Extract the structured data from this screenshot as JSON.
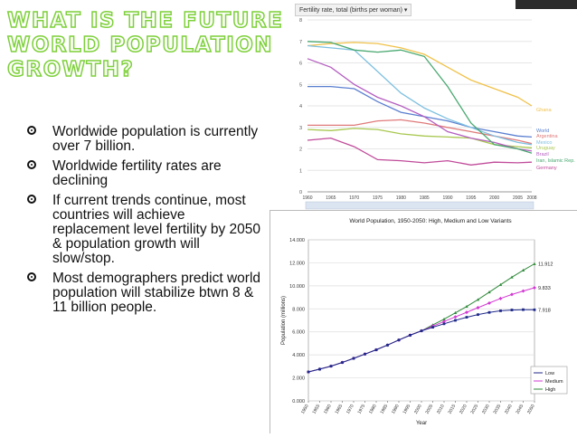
{
  "title": {
    "lines": [
      "WHAT IS THE FUTURE OF",
      "WORLD POPULATION",
      "GROWTH?"
    ]
  },
  "bullets": [
    "Worldwide population is currently over 7 billion.",
    "Worldwide fertility rates are declining",
    "If current trends continue, most countries will achieve replacement level fertility by 2050 & population growth will slow/stop.",
    "Most demographers predict world population will stabilize btwn 8 & 11 billion people."
  ],
  "chart_data": [
    {
      "type": "line",
      "title": "Fertility rate, total (births per woman)",
      "x": [
        1960,
        1965,
        1970,
        1975,
        1980,
        1985,
        1990,
        1995,
        2000,
        2005,
        2008
      ],
      "x_ticks": [
        1960,
        1965,
        1970,
        1975,
        1980,
        1985,
        1990,
        1995,
        2000,
        2005,
        2008
      ],
      "ylim": [
        0,
        8
      ],
      "y_ticks": [
        0,
        1,
        2,
        3,
        4,
        5,
        6,
        7,
        8
      ],
      "series": [
        {
          "name": "Ghana",
          "color": "#f0c24a",
          "values": [
            6.8,
            6.9,
            6.95,
            6.9,
            6.7,
            6.4,
            5.8,
            5.2,
            4.8,
            4.4,
            4.0
          ]
        },
        {
          "name": "World",
          "color": "#5a7fd0",
          "values": [
            4.9,
            4.9,
            4.8,
            4.2,
            3.7,
            3.5,
            3.3,
            3.0,
            2.8,
            2.6,
            2.55
          ]
        },
        {
          "name": "Argentina",
          "color": "#e07a7a",
          "values": [
            3.1,
            3.1,
            3.1,
            3.3,
            3.35,
            3.2,
            3.0,
            2.8,
            2.6,
            2.4,
            2.25
          ]
        },
        {
          "name": "Mexico",
          "color": "#7ec0e0",
          "values": [
            6.8,
            6.7,
            6.6,
            5.6,
            4.6,
            3.9,
            3.4,
            3.0,
            2.6,
            2.3,
            2.2
          ]
        },
        {
          "name": "Uruguay",
          "color": "#a8c850",
          "values": [
            2.9,
            2.85,
            2.95,
            2.9,
            2.7,
            2.6,
            2.55,
            2.5,
            2.2,
            2.1,
            2.05
          ]
        },
        {
          "name": "Brazil",
          "color": "#b45fc0",
          "values": [
            6.2,
            5.8,
            5.0,
            4.4,
            4.0,
            3.5,
            2.8,
            2.5,
            2.3,
            2.0,
            1.9
          ]
        },
        {
          "name": "Iran, Islamic Rep.",
          "color": "#48a870",
          "values": [
            7.0,
            6.95,
            6.6,
            6.5,
            6.6,
            6.3,
            4.9,
            3.2,
            2.2,
            2.0,
            1.8
          ]
        },
        {
          "name": "Germany",
          "color": "#c04b9a",
          "values": [
            2.4,
            2.5,
            2.1,
            1.5,
            1.45,
            1.35,
            1.45,
            1.25,
            1.38,
            1.35,
            1.38
          ]
        }
      ]
    },
    {
      "type": "line",
      "title": "World Population, 1950-2050: High, Medium and Low Variants",
      "xlabel": "Year",
      "ylabel": "Population (millions)",
      "ylim": [
        0,
        14000
      ],
      "y_ticks": [
        0,
        2000,
        4000,
        6000,
        8000,
        10000,
        12000,
        14000
      ],
      "y_tick_labels": [
        "0.000",
        "2.000",
        "4.000",
        "6.000",
        "8.000",
        "10.000",
        "12.000",
        "14.000"
      ],
      "x": [
        1950,
        1955,
        1960,
        1965,
        1970,
        1975,
        1980,
        1985,
        1990,
        1995,
        2000,
        2005,
        2010,
        2015,
        2020,
        2025,
        2030,
        2035,
        2040,
        2045,
        2050
      ],
      "legend": "bottom-right",
      "end_labels": {
        "High": "11.912",
        "Medium": "9.833",
        "Low": "7.918"
      },
      "series": [
        {
          "name": "Low",
          "color": "#1f2a8a",
          "values": [
            2520,
            2760,
            3020,
            3340,
            3700,
            4070,
            4440,
            4850,
            5290,
            5710,
            6090,
            6400,
            6700,
            7000,
            7270,
            7500,
            7690,
            7830,
            7900,
            7930,
            7918
          ]
        },
        {
          "name": "Medium",
          "color": "#d23ad2",
          "values": [
            2520,
            2760,
            3020,
            3340,
            3700,
            4070,
            4440,
            4850,
            5290,
            5710,
            6090,
            6500,
            6900,
            7300,
            7700,
            8100,
            8500,
            8900,
            9250,
            9550,
            9833
          ]
        },
        {
          "name": "High",
          "color": "#2f8a3a",
          "values": [
            2520,
            2760,
            3020,
            3340,
            3700,
            4070,
            4440,
            4850,
            5290,
            5710,
            6090,
            6600,
            7100,
            7650,
            8200,
            8800,
            9450,
            10100,
            10750,
            11350,
            11912
          ]
        }
      ]
    }
  ]
}
